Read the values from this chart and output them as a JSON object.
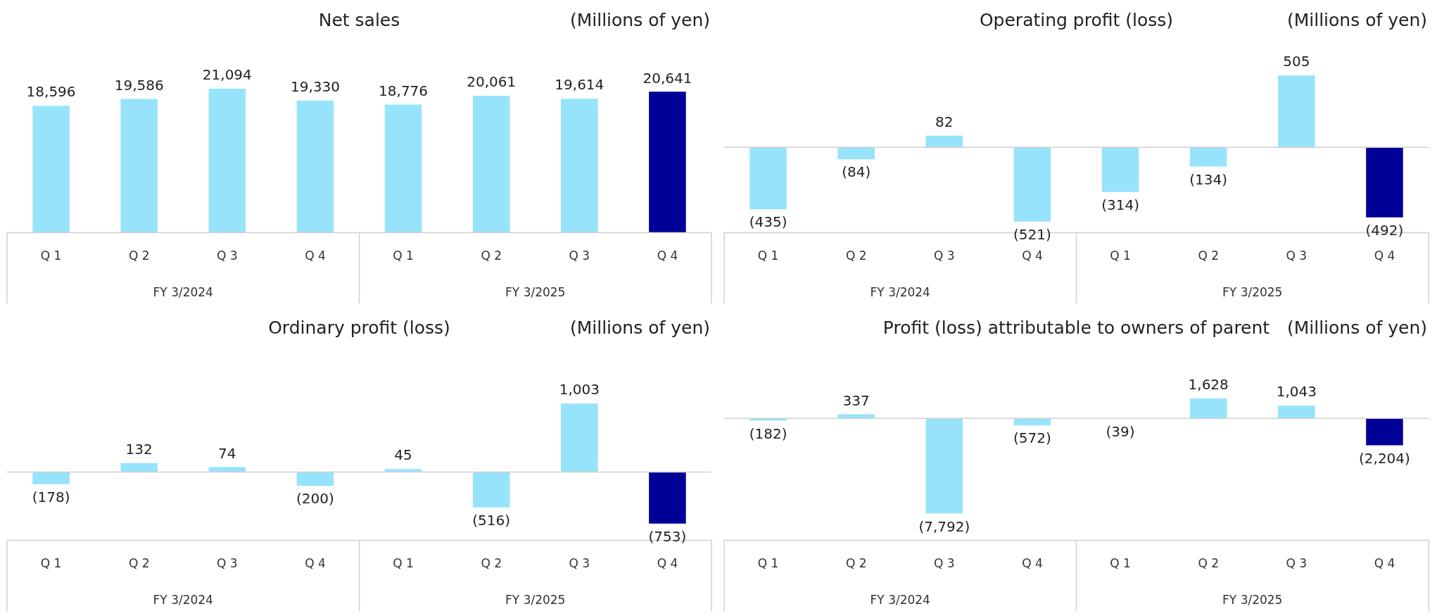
{
  "chart_data": [
    {
      "type": "bar",
      "title": "Net sales",
      "annotations": [
        "(Millions of yen)",
        "FY 3/2024",
        "FY 3/2025"
      ],
      "categories": [
        "Q 1",
        "Q 2",
        "Q 3",
        "Q 4",
        "Q 1",
        "Q 2",
        "Q 3",
        "Q 4"
      ],
      "values": [
        18596,
        19586,
        21094,
        19330,
        18776,
        20061,
        19614,
        20641
      ],
      "value_labels": [
        "18,596",
        "19,586",
        "21,094",
        "19,330",
        "18,776",
        "20,061",
        "19,614",
        "20,641"
      ],
      "colors": [
        "#97e3fc",
        "#97e3fc",
        "#97e3fc",
        "#97e3fc",
        "#97e3fc",
        "#97e3fc",
        "#97e3fc",
        "#000099"
      ],
      "tick_labels": "x"
    },
    {
      "type": "bar",
      "title": "Operating profit  (loss)",
      "annotations": [
        "(Millions of yen)",
        "FY 3/2024",
        "FY 3/2025"
      ],
      "categories": [
        "Q 1",
        "Q 2",
        "Q 3",
        "Q 4",
        "Q 1",
        "Q 2",
        "Q 3",
        "Q 4"
      ],
      "values": [
        -435,
        -84,
        82,
        -521,
        -314,
        -134,
        505,
        -492
      ],
      "value_labels": [
        "(435)",
        "(84)",
        "82",
        "(521)",
        "(314)",
        "(134)",
        "505",
        "(492)"
      ],
      "colors": [
        "#97e3fc",
        "#97e3fc",
        "#97e3fc",
        "#97e3fc",
        "#97e3fc",
        "#97e3fc",
        "#97e3fc",
        "#000099"
      ],
      "tick_labels": "x"
    },
    {
      "type": "bar",
      "title": "Ordinary profit (loss)",
      "annotations": [
        "(Millions of yen)",
        "FY 3/2024",
        "FY 3/2025"
      ],
      "categories": [
        "Q 1",
        "Q 2",
        "Q 3",
        "Q 4",
        "Q 1",
        "Q 2",
        "Q 3",
        "Q 4"
      ],
      "values": [
        -178,
        132,
        74,
        -200,
        45,
        -516,
        1003,
        -753
      ],
      "value_labels": [
        "(178)",
        "132",
        "74",
        "(200)",
        "45",
        "(516)",
        "1,003",
        "(753)"
      ],
      "colors": [
        "#97e3fc",
        "#97e3fc",
        "#97e3fc",
        "#97e3fc",
        "#97e3fc",
        "#97e3fc",
        "#97e3fc",
        "#000099"
      ],
      "tick_labels": "x"
    },
    {
      "type": "bar",
      "title": "Profit (loss) attributable to owners of parent",
      "annotations": [
        "(Millions of yen)",
        "FY 3/2024",
        "FY 3/2025"
      ],
      "categories": [
        "Q 1",
        "Q 2",
        "Q 3",
        "Q 4",
        "Q 1",
        "Q 2",
        "Q 3",
        "Q 4"
      ],
      "values": [
        -182,
        337,
        -7792,
        -572,
        -39,
        1628,
        1043,
        -2204
      ],
      "value_labels": [
        "(182)",
        "337",
        "(7,792)",
        "(572)",
        "(39)",
        "1,628",
        "1,043",
        "(2,204)"
      ],
      "colors": [
        "#97e3fc",
        "#97e3fc",
        "#97e3fc",
        "#97e3fc",
        "#97e3fc",
        "#97e3fc",
        "#97e3fc",
        "#000099"
      ],
      "tick_labels": "x"
    }
  ]
}
